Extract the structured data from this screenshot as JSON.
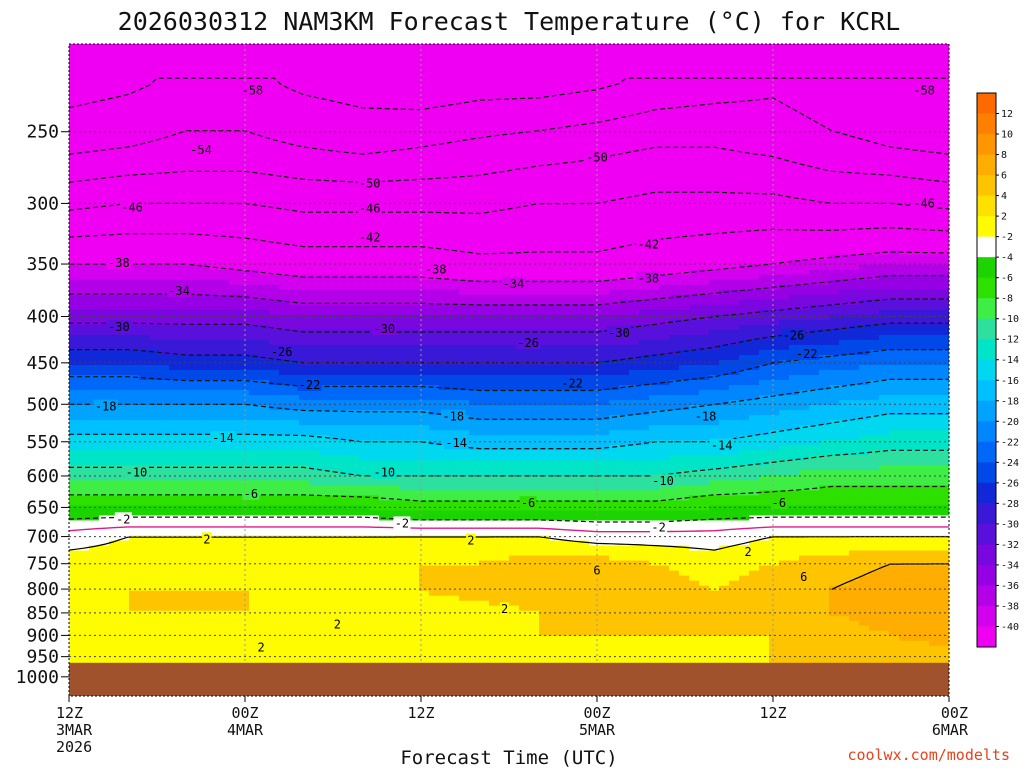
{
  "chart_data": {
    "type": "heatmap",
    "title": "2026030312 NAM3KM Forecast Temperature (°C) for KCRL",
    "xlabel": "Forecast Time (UTC)",
    "ylabel": "",
    "credit": "coolwx.com/modelts",
    "x_ticks": [
      {
        "l1": "12Z",
        "l2": "3MAR",
        "l3": "2026"
      },
      {
        "l1": "00Z",
        "l2": "4MAR",
        "l3": ""
      },
      {
        "l1": "12Z",
        "l2": "",
        "l3": ""
      },
      {
        "l1": "00Z",
        "l2": "5MAR",
        "l3": ""
      },
      {
        "l1": "12Z",
        "l2": "",
        "l3": ""
      },
      {
        "l1": "00Z",
        "l2": "6MAR",
        "l3": ""
      }
    ],
    "x_hours": [
      0,
      12,
      24,
      36,
      48,
      60
    ],
    "ylim": [
      1050,
      200
    ],
    "y_ticks": [
      250,
      300,
      350,
      400,
      450,
      500,
      550,
      600,
      650,
      700,
      750,
      800,
      850,
      900,
      950,
      1000
    ],
    "surface_pressure_hpa": 965,
    "colorbar": {
      "labels": [
        "12",
        "10",
        "8",
        "6",
        "4",
        "2",
        "-2",
        "-4",
        "-6",
        "-8",
        "-10",
        "-12",
        "-14",
        "-16",
        "-18",
        "-20",
        "-22",
        "-24",
        "-26",
        "-28",
        "-30",
        "-32",
        "-34",
        "-36",
        "-38",
        "-40"
      ],
      "colors": [
        "#ff6a00",
        "#ff7f00",
        "#ff9500",
        "#ffad00",
        "#ffc400",
        "#ffe100",
        "#fffb00",
        "#ffffff",
        "#1bd400",
        "#2ee000",
        "#3fee44",
        "#2de0a0",
        "#00e4c8",
        "#00d8f0",
        "#00c0ff",
        "#00a4ff",
        "#0086ff",
        "#0068f8",
        "#0048e8",
        "#1028d8",
        "#3a18d8",
        "#5a10dc",
        "#7a06e0",
        "#9600e4",
        "#b400e8",
        "#d200ee",
        "#f000f2"
      ]
    },
    "temperature_levels_hpa": [
      {
        "p": 220,
        "temps": [
          -60,
          -59,
          -57,
          -57,
          -59,
          -60,
          -61,
          -60,
          -60,
          -59,
          -57,
          -56,
          -55,
          -57,
          -58,
          -58
        ]
      },
      {
        "p": 260,
        "temps": [
          -55,
          -54,
          -53,
          -53,
          -54,
          -55,
          -54,
          -53,
          -52,
          -51,
          -50,
          -50,
          -51,
          -53,
          -54,
          -55
        ]
      },
      {
        "p": 300,
        "temps": [
          -47,
          -46,
          -46,
          -46,
          -47,
          -47,
          -47,
          -47,
          -46,
          -46,
          -45,
          -45,
          -45,
          -46,
          -46,
          -47
        ]
      },
      {
        "p": 350,
        "temps": [
          -38,
          -38,
          -38,
          -39,
          -40,
          -40,
          -40,
          -41,
          -41,
          -41,
          -40,
          -39,
          -38,
          -37,
          -36,
          -36
        ]
      },
      {
        "p": 400,
        "temps": [
          -31,
          -31,
          -31,
          -31,
          -32,
          -32,
          -32,
          -32,
          -32,
          -32,
          -31,
          -30,
          -29,
          -28,
          -27,
          -27
        ]
      },
      {
        "p": 450,
        "temps": [
          -24,
          -24,
          -25,
          -25,
          -26,
          -26,
          -26,
          -26,
          -26,
          -26,
          -25,
          -24,
          -22,
          -21,
          -20,
          -20
        ]
      },
      {
        "p": 500,
        "temps": [
          -18,
          -18,
          -18,
          -18,
          -19,
          -19,
          -19,
          -20,
          -20,
          -20,
          -19,
          -18,
          -17,
          -16,
          -15,
          -15
        ]
      },
      {
        "p": 550,
        "temps": [
          -13,
          -13,
          -13,
          -13,
          -13,
          -14,
          -14,
          -15,
          -15,
          -15,
          -14,
          -14,
          -13,
          -12,
          -11,
          -11
        ]
      },
      {
        "p": 600,
        "temps": [
          -9,
          -9,
          -9,
          -9,
          -9,
          -10,
          -10,
          -10,
          -10,
          -10,
          -10,
          -9,
          -8,
          -7,
          -7,
          -7
        ]
      },
      {
        "p": 650,
        "temps": [
          -4,
          -4,
          -4,
          -4,
          -4,
          -4,
          -5,
          -5,
          -5,
          -5,
          -5,
          -4,
          -4,
          -4,
          -4,
          -4
        ]
      },
      {
        "p": 700,
        "temps": [
          1,
          2,
          2,
          2,
          2,
          2,
          2,
          2,
          2,
          1,
          1,
          1,
          2,
          2,
          2,
          2
        ]
      },
      {
        "p": 750,
        "temps": [
          3,
          3,
          3,
          3,
          3,
          3,
          4,
          4,
          5,
          5,
          4,
          3,
          4,
          5,
          6,
          6
        ]
      },
      {
        "p": 800,
        "temps": [
          3,
          4,
          4,
          4,
          4,
          4,
          4,
          5,
          6,
          6,
          5,
          4,
          5,
          6,
          7,
          8
        ]
      },
      {
        "p": 850,
        "temps": [
          3,
          4,
          4,
          4,
          3,
          3,
          3,
          3,
          4,
          5,
          5,
          4,
          5,
          6,
          7,
          8
        ]
      },
      {
        "p": 900,
        "temps": [
          2,
          3,
          3,
          3,
          3,
          2,
          2,
          3,
          4,
          4,
          4,
          4,
          4,
          5,
          6,
          7
        ]
      },
      {
        "p": 950,
        "temps": [
          2,
          2,
          2,
          2,
          2,
          2,
          2,
          3,
          3,
          3,
          3,
          3,
          4,
          4,
          5,
          5
        ]
      }
    ],
    "contour_labels": [
      {
        "text": "-58",
        "hour": 12.5,
        "p": 225
      },
      {
        "text": "-58",
        "hour": 58.3,
        "p": 225
      },
      {
        "text": "-54",
        "hour": 9,
        "p": 262
      },
      {
        "text": "-50",
        "hour": 20.5,
        "p": 285
      },
      {
        "text": "-50",
        "hour": 36,
        "p": 267
      },
      {
        "text": "-46",
        "hour": 4.3,
        "p": 303
      },
      {
        "text": "-46",
        "hour": 20.5,
        "p": 304
      },
      {
        "text": "-46",
        "hour": 58.3,
        "p": 300
      },
      {
        "text": "-42",
        "hour": 20.5,
        "p": 327
      },
      {
        "text": "-42",
        "hour": 39.5,
        "p": 333
      },
      {
        "text": "-38",
        "hour": 3.4,
        "p": 349
      },
      {
        "text": "-38",
        "hour": 25,
        "p": 355
      },
      {
        "text": "-38",
        "hour": 39.5,
        "p": 363
      },
      {
        "text": "-34",
        "hour": 7.5,
        "p": 375
      },
      {
        "text": "-34",
        "hour": 30.3,
        "p": 368
      },
      {
        "text": "-30",
        "hour": 3.4,
        "p": 411
      },
      {
        "text": "-30",
        "hour": 21.5,
        "p": 413
      },
      {
        "text": "-30",
        "hour": 37.5,
        "p": 417
      },
      {
        "text": "-26",
        "hour": 14.5,
        "p": 438
      },
      {
        "text": "-26",
        "hour": 31.3,
        "p": 428
      },
      {
        "text": "-26",
        "hour": 49.4,
        "p": 420
      },
      {
        "text": "-22",
        "hour": 16.4,
        "p": 476
      },
      {
        "text": "-22",
        "hour": 34.3,
        "p": 474
      },
      {
        "text": "-22",
        "hour": 50.3,
        "p": 440
      },
      {
        "text": "-18",
        "hour": 2.5,
        "p": 503
      },
      {
        "text": "-18",
        "hour": 26.2,
        "p": 516
      },
      {
        "text": "-18",
        "hour": 43.4,
        "p": 516
      },
      {
        "text": "-14",
        "hour": 10.5,
        "p": 545
      },
      {
        "text": "-14",
        "hour": 26.4,
        "p": 552
      },
      {
        "text": "-14",
        "hour": 44.5,
        "p": 555
      },
      {
        "text": "-10",
        "hour": 4.6,
        "p": 595
      },
      {
        "text": "-10",
        "hour": 21.5,
        "p": 595
      },
      {
        "text": "-10",
        "hour": 40.5,
        "p": 608
      },
      {
        "text": "-6",
        "hour": 12.4,
        "p": 628
      },
      {
        "text": "-6",
        "hour": 31.3,
        "p": 643
      },
      {
        "text": "-6",
        "hour": 48.4,
        "p": 643
      },
      {
        "text": "-2",
        "hour": 3.7,
        "p": 670
      },
      {
        "text": "-2",
        "hour": 22.7,
        "p": 677
      },
      {
        "text": "-2",
        "hour": 40.2,
        "p": 684
      },
      {
        "text": "2",
        "hour": 9.4,
        "p": 705
      },
      {
        "text": "2",
        "hour": 27.4,
        "p": 707
      },
      {
        "text": "2",
        "hour": 46.3,
        "p": 728
      },
      {
        "text": "6",
        "hour": 36,
        "p": 763
      },
      {
        "text": "6",
        "hour": 50.1,
        "p": 776
      },
      {
        "text": "2",
        "hour": 29.7,
        "p": 842
      },
      {
        "text": "2",
        "hour": 18.3,
        "p": 875
      },
      {
        "text": "2",
        "hour": 13.1,
        "p": 928
      }
    ]
  }
}
